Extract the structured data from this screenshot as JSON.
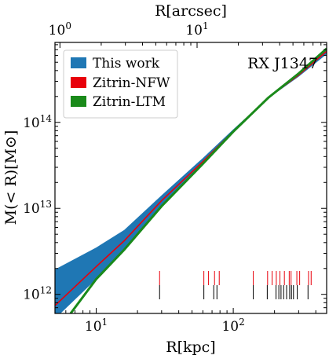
{
  "chart_data": {
    "type": "area",
    "title": "",
    "annotation": "RX J1347",
    "xlabel": "R[kpc]",
    "ylabel": "M(< R)[M⊙]",
    "top_xlabel": "R[arcsec]",
    "xscale": "log",
    "yscale": "log",
    "xlim": [
      5,
      480
    ],
    "ylim": [
      600000000000.0,
      850000000000000.0
    ],
    "top_xlim": [
      0.92,
      88
    ],
    "x_ticks": [
      {
        "value": 10,
        "base": "10",
        "exp": "1"
      },
      {
        "value": 100,
        "base": "10",
        "exp": "2"
      }
    ],
    "y_ticks": [
      {
        "value": 1000000000000.0,
        "base": "10",
        "exp": "12"
      },
      {
        "value": 10000000000000.0,
        "base": "10",
        "exp": "13"
      },
      {
        "value": 100000000000000.0,
        "base": "10",
        "exp": "14"
      }
    ],
    "top_ticks": [
      {
        "value": 1,
        "base": "10",
        "exp": "0"
      },
      {
        "value": 10,
        "base": "10",
        "exp": "1"
      }
    ],
    "legend_position": "top-left",
    "series": [
      {
        "name": "This work",
        "kind": "band",
        "color": "#1f77b4",
        "x": [
          5,
          10,
          16,
          30,
          60,
          100,
          180,
          300,
          480
        ],
        "y_lower": [
          520000000000.0,
          1500000000000.0,
          3400000000000.0,
          10800000000000.0,
          32000000000000.0,
          76000000000000.0,
          190000000000000.0,
          340000000000000.0,
          620000000000000.0
        ],
        "y_upper": [
          1950000000000.0,
          3500000000000.0,
          5600000000000.0,
          14200000000000.0,
          38500000000000.0,
          83000000000000.0,
          195000000000000.0,
          370000000000000.0,
          710000000000000.0
        ]
      },
      {
        "name": "Zitrin-NFW",
        "kind": "line",
        "color": "#e8000b",
        "x": [
          5,
          10,
          16,
          30,
          60,
          100,
          180,
          300,
          480
        ],
        "y": [
          740000000000.0,
          2100000000000.0,
          4200000000000.0,
          12300000000000.0,
          35000000000000.0,
          79000000000000.0,
          193000000000000.0,
          355000000000000.0,
          670000000000000.0
        ]
      },
      {
        "name": "Zitrin-LTM",
        "kind": "line",
        "color": "#1a8a1a",
        "x": [
          6.5,
          10,
          16,
          30,
          60,
          100,
          180,
          300,
          480
        ],
        "y": [
          600000000000.0,
          1500000000000.0,
          3300000000000.0,
          10600000000000.0,
          33000000000000.0,
          78000000000000.0,
          193000000000000.0,
          370000000000000.0,
          720000000000000.0
        ]
      }
    ],
    "rug_marks": [
      {
        "name": "red",
        "color": "#e8000b",
        "x": [
          29,
          61,
          66,
          73,
          79,
          140,
          178,
          192,
          206,
          219,
          236,
          256,
          264,
          291,
          305,
          354,
          370
        ]
      },
      {
        "name": "black",
        "color": "#000000",
        "x": [
          29,
          61,
          72,
          76,
          140,
          177,
          205,
          215,
          223,
          233,
          245,
          258,
          266,
          275,
          293,
          351
        ]
      }
    ]
  }
}
